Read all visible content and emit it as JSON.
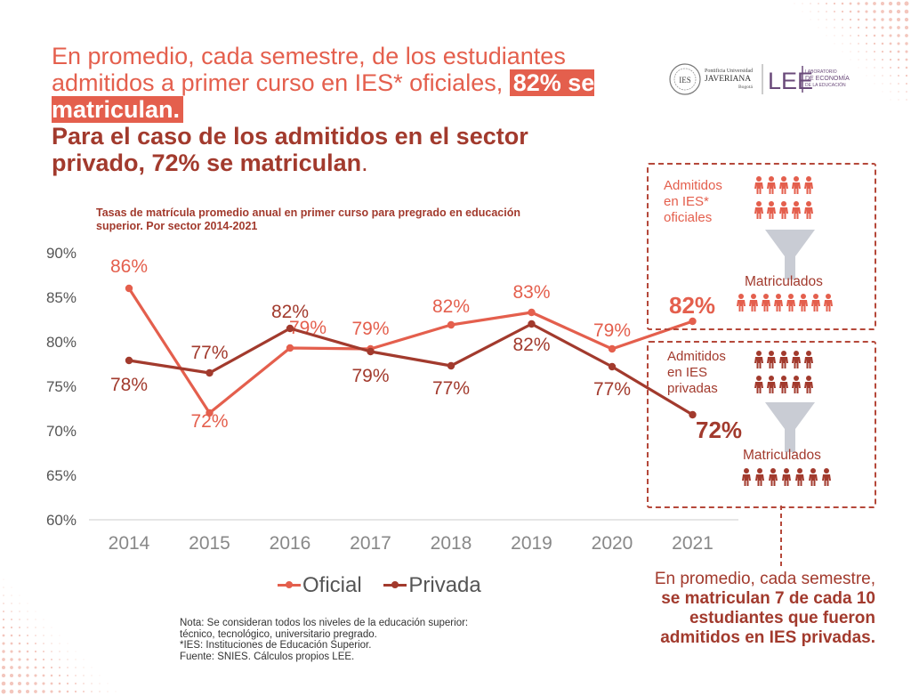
{
  "headline": {
    "line_light": "En promedio, cada semestre, de los estudiantes admitidos a primer curso en IES* oficiales,",
    "highlight": "82%  se matriculan.",
    "line_dark": "Para el caso de los admitidos en el sector privado, 72% se matriculan",
    "end": "."
  },
  "logo": {
    "university_top": "Pontificia Universidad",
    "university_name": "JAVERIANA",
    "university_city": "Bogotá",
    "lee": "LEE",
    "lab_line1": "LABORATORIO",
    "lab_line2": "DE ECONOMÍA",
    "lab_line3": "DE LA EDUCACIÓN",
    "seal": "IES"
  },
  "chart_data": {
    "type": "line",
    "title": "Tasas de matrícula promedio anual en primer curso para pregrado en educación superior. Por sector 2014-2021",
    "categories": [
      "2014",
      "2015",
      "2016",
      "2017",
      "2018",
      "2019",
      "2020",
      "2021"
    ],
    "y_ticks": [
      "60%",
      "65%",
      "70%",
      "75%",
      "80%",
      "85%",
      "90%"
    ],
    "ylim": [
      60,
      90
    ],
    "series": [
      {
        "name": "Oficial",
        "color": "#e45f4d",
        "values": [
          86,
          72,
          79.3,
          79.2,
          81.9,
          83.3,
          79.2,
          82.3
        ],
        "labels": [
          "86%",
          "72%",
          "79%",
          "79%",
          "82%",
          "83%",
          "79%",
          "82%"
        ]
      },
      {
        "name": "Privada",
        "color": "#a23a2d",
        "values": [
          77.9,
          76.5,
          81.5,
          78.9,
          77.3,
          82,
          77.2,
          71.8
        ],
        "labels": [
          "78%",
          "77%",
          "82%",
          "79%",
          "77%",
          "82%",
          "77%",
          "72%"
        ]
      }
    ],
    "legend_position": "bottom"
  },
  "note": {
    "line1": "Nota: Se consideran todos los niveles de la educación superior:",
    "line2": "técnico, tecnológico, universitario pregrado.",
    "line3": "*IES: Instituciones de Educación Superior.",
    "line4": "Fuente: SNIES. Cálculos propios LEE."
  },
  "box_oficial": {
    "label": "Admitidos\nen IES*\noficiales",
    "matriculados": "Matriculados",
    "admitidos_count": 10,
    "matriculados_count": 8,
    "color": "#e45f4d"
  },
  "box_privada": {
    "label": "Admitidos\nen IES\nprivadas",
    "matriculados": "Matriculados",
    "admitidos_count": 10,
    "matriculados_count": 7,
    "color": "#a23a2d"
  },
  "bottom_text": {
    "line1": "En promedio, cada semestre,",
    "line2": "se matriculan 7 de cada 10",
    "line3": "estudiantes que fueron",
    "line4": "admitidos en IES privadas."
  }
}
